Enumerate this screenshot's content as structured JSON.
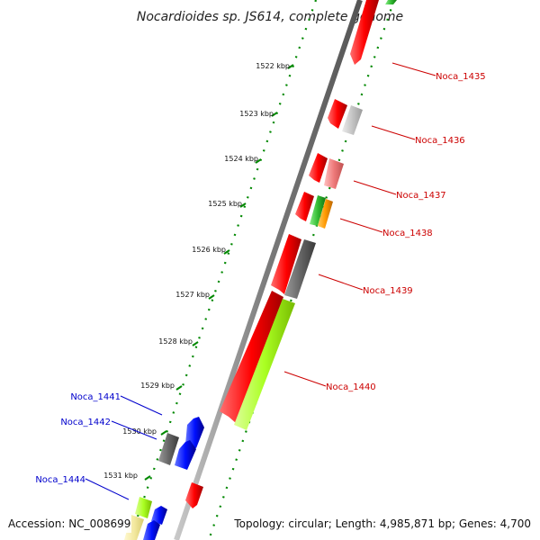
{
  "title": "Nocardioides sp. JS614, complete genome",
  "footer": {
    "accession": "Accession: NC_008699",
    "topology": "Topology: circular; Length: 4,985,871 bp; Genes: 4,700"
  },
  "ticks": [
    "1522 kbp",
    "1523 kbp",
    "1524 kbp",
    "1525 kbp",
    "1526 kbp",
    "1527 kbp",
    "1528 kbp",
    "1529 kbp",
    "1530 kbp",
    "1531 kbp"
  ],
  "gene_labels_right": [
    "Noca_1435",
    "Noca_1436",
    "Noca_1437",
    "Noca_1438",
    "Noca_1439",
    "Noca_1440"
  ],
  "gene_labels_left": [
    "Noca_1441",
    "Noca_1442",
    "Noca_1444"
  ],
  "colors": {
    "right_label": "#cc0000",
    "left_label": "#0000cc",
    "cds_red": "#ff0000",
    "cds_blue": "#0010ff",
    "cds_green": "#aaff22",
    "cds_grey": "#666666",
    "tick_green": "#008800"
  }
}
